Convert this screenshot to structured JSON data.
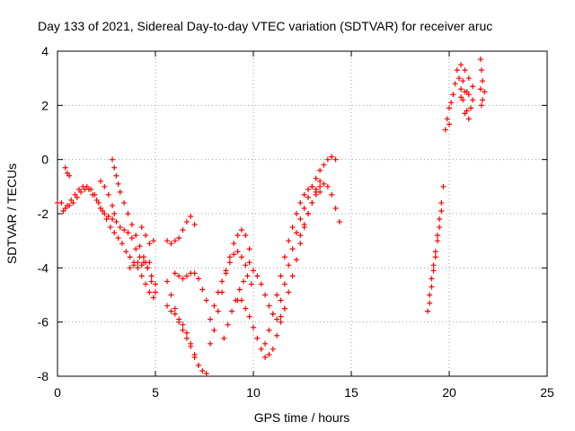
{
  "chart_data": {
    "type": "scatter",
    "title": "Day 133 of 2021, Sidereal Day-to-day VTEC variation (SDTVAR) for receiver aruc",
    "xlabel": "GPS time / hours",
    "ylabel": "SDTVAR / TECUs",
    "xlim": [
      0,
      25
    ],
    "ylim": [
      -8,
      4
    ],
    "xticks": [
      "0",
      "5",
      "10",
      "15",
      "20",
      "25"
    ],
    "yticks": [
      "-8",
      "-6",
      "-4",
      "-2",
      "0",
      "2",
      "4"
    ],
    "grid": true,
    "marker": "plus",
    "color": "#ff0000",
    "series": [
      {
        "name": "s1",
        "points": [
          [
            0.0,
            -1.6
          ],
          [
            0.2,
            -1.6
          ],
          [
            0.4,
            -1.8
          ],
          [
            0.6,
            -1.7
          ],
          [
            0.8,
            -1.6
          ],
          [
            1.0,
            -1.4
          ],
          [
            1.2,
            -1.2
          ],
          [
            1.4,
            -1.1
          ],
          [
            1.6,
            -1.1
          ],
          [
            1.8,
            -1.3
          ],
          [
            2.0,
            -1.5
          ],
          [
            2.2,
            -1.8
          ],
          [
            2.4,
            -2.0
          ],
          [
            2.6,
            -2.1
          ],
          [
            2.8,
            -2.2
          ]
        ]
      },
      {
        "name": "s2",
        "points": [
          [
            0.3,
            -1.9
          ],
          [
            0.5,
            -1.7
          ],
          [
            0.7,
            -1.5
          ],
          [
            0.9,
            -1.3
          ],
          [
            1.1,
            -1.1
          ],
          [
            1.3,
            -1.0
          ],
          [
            1.5,
            -1.0
          ],
          [
            1.7,
            -1.1
          ],
          [
            1.9,
            -1.3
          ],
          [
            2.1,
            -1.6
          ],
          [
            2.3,
            -1.9
          ],
          [
            2.5,
            -2.2
          ],
          [
            2.7,
            -2.5
          ],
          [
            2.9,
            -2.7
          ],
          [
            3.1,
            -2.9
          ],
          [
            3.3,
            -3.1
          ],
          [
            3.5,
            -3.4
          ],
          [
            3.7,
            -3.6
          ],
          [
            3.9,
            -3.8
          ],
          [
            4.1,
            -4.0
          ],
          [
            4.3,
            -4.3
          ],
          [
            4.5,
            -4.6
          ],
          [
            4.7,
            -4.9
          ],
          [
            4.9,
            -5.1
          ]
        ]
      },
      {
        "name": "s3",
        "points": [
          [
            0.4,
            -0.3
          ],
          [
            0.5,
            -0.5
          ],
          [
            0.6,
            -0.6
          ]
        ]
      },
      {
        "name": "s4",
        "points": [
          [
            2.2,
            -0.8
          ],
          [
            2.4,
            -1.0
          ],
          [
            2.6,
            -1.3
          ],
          [
            2.8,
            -1.7
          ],
          [
            2.9,
            -2.0
          ],
          [
            3.0,
            -2.3
          ],
          [
            3.2,
            -2.5
          ],
          [
            3.4,
            -2.6
          ],
          [
            3.6,
            -2.7
          ],
          [
            3.8,
            -2.9
          ],
          [
            4.0,
            -3.3
          ],
          [
            4.2,
            -3.6
          ],
          [
            4.4,
            -3.8
          ],
          [
            4.6,
            -4.0
          ],
          [
            4.8,
            -4.3
          ],
          [
            5.0,
            -4.6
          ]
        ]
      },
      {
        "name": "s5",
        "points": [
          [
            2.8,
            0.0
          ],
          [
            2.9,
            -0.3
          ],
          [
            3.0,
            -0.6
          ],
          [
            3.1,
            -0.9
          ],
          [
            3.2,
            -1.2
          ],
          [
            3.4,
            -1.6
          ],
          [
            3.6,
            -2.0
          ],
          [
            3.8,
            -2.4
          ],
          [
            4.0,
            -2.8
          ],
          [
            4.2,
            -3.2
          ],
          [
            4.4,
            -3.6
          ],
          [
            4.6,
            -4.0
          ],
          [
            4.8,
            -4.5
          ],
          [
            5.0,
            -4.9
          ]
        ]
      },
      {
        "name": "s6",
        "points": [
          [
            3.7,
            -4.0
          ],
          [
            3.9,
            -3.9
          ],
          [
            4.1,
            -3.8
          ],
          [
            4.3,
            -3.9
          ],
          [
            4.5,
            -3.8
          ],
          [
            4.7,
            -3.8
          ]
        ]
      },
      {
        "name": "s7",
        "points": [
          [
            4.3,
            -2.5
          ],
          [
            4.5,
            -2.8
          ],
          [
            4.7,
            -3.1
          ],
          [
            4.9,
            -3.0
          ]
        ]
      },
      {
        "name": "s8",
        "points": [
          [
            5.6,
            -3.0
          ],
          [
            5.8,
            -3.1
          ],
          [
            6.0,
            -3.0
          ],
          [
            6.2,
            -2.9
          ],
          [
            6.4,
            -2.6
          ],
          [
            6.6,
            -2.3
          ],
          [
            6.8,
            -2.1
          ],
          [
            7.0,
            -2.4
          ]
        ]
      },
      {
        "name": "s9",
        "points": [
          [
            5.6,
            -5.4
          ],
          [
            5.8,
            -5.6
          ],
          [
            6.0,
            -5.7
          ],
          [
            6.2,
            -5.9
          ],
          [
            6.4,
            -6.1
          ],
          [
            6.6,
            -6.4
          ],
          [
            6.8,
            -6.8
          ],
          [
            7.0,
            -7.2
          ],
          [
            7.2,
            -7.6
          ],
          [
            7.4,
            -7.8
          ],
          [
            7.6,
            -7.9
          ]
        ]
      },
      {
        "name": "s10",
        "points": [
          [
            5.6,
            -4.5
          ],
          [
            5.8,
            -5.0
          ],
          [
            6.0,
            -5.5
          ],
          [
            6.2,
            -6.0
          ],
          [
            6.4,
            -6.3
          ],
          [
            6.6,
            -6.6
          ],
          [
            6.8,
            -6.9
          ],
          [
            7.0,
            -7.3
          ],
          [
            7.2,
            -7.6
          ]
        ]
      },
      {
        "name": "s11",
        "points": [
          [
            6.0,
            -4.2
          ],
          [
            6.2,
            -4.3
          ],
          [
            6.4,
            -4.4
          ],
          [
            6.6,
            -4.3
          ],
          [
            6.8,
            -4.2
          ],
          [
            7.0,
            -4.2
          ],
          [
            7.2,
            -4.4
          ],
          [
            7.4,
            -4.8
          ],
          [
            7.6,
            -5.2
          ]
        ]
      },
      {
        "name": "s12",
        "points": [
          [
            7.8,
            -6.8
          ],
          [
            8.0,
            -6.3
          ],
          [
            8.2,
            -5.6
          ],
          [
            8.4,
            -4.9
          ],
          [
            8.6,
            -4.2
          ],
          [
            8.8,
            -3.6
          ],
          [
            9.0,
            -3.1
          ],
          [
            9.2,
            -2.8
          ],
          [
            9.4,
            -2.6
          ],
          [
            9.6,
            -2.8
          ],
          [
            9.8,
            -3.3
          ]
        ]
      },
      {
        "name": "s13",
        "points": [
          [
            7.8,
            -5.9
          ],
          [
            8.0,
            -5.4
          ],
          [
            8.2,
            -4.9
          ],
          [
            8.4,
            -4.5
          ],
          [
            8.6,
            -4.1
          ],
          [
            8.8,
            -3.8
          ],
          [
            9.0,
            -3.5
          ],
          [
            9.2,
            -3.4
          ],
          [
            9.4,
            -3.6
          ],
          [
            9.6,
            -3.9
          ]
        ]
      },
      {
        "name": "s14",
        "points": [
          [
            8.5,
            -6.6
          ],
          [
            8.7,
            -6.1
          ],
          [
            8.9,
            -5.6
          ],
          [
            9.1,
            -5.2
          ],
          [
            9.3,
            -4.8
          ],
          [
            9.5,
            -4.5
          ],
          [
            9.7,
            -4.3
          ],
          [
            9.9,
            -4.6
          ]
        ]
      },
      {
        "name": "s15",
        "points": [
          [
            9.8,
            -3.8
          ],
          [
            10.0,
            -4.1
          ],
          [
            10.2,
            -4.3
          ],
          [
            10.4,
            -4.6
          ],
          [
            10.6,
            -5.0
          ],
          [
            10.8,
            -5.4
          ],
          [
            11.0,
            -5.7
          ],
          [
            11.2,
            -5.9
          ],
          [
            11.4,
            -5.8
          ],
          [
            11.6,
            -5.5
          ]
        ]
      },
      {
        "name": "s16",
        "points": [
          [
            9.2,
            -5.2
          ],
          [
            9.4,
            -5.2
          ],
          [
            9.6,
            -5.5
          ],
          [
            9.8,
            -5.8
          ],
          [
            10.0,
            -6.2
          ],
          [
            10.2,
            -6.6
          ],
          [
            10.4,
            -7.0
          ],
          [
            10.6,
            -7.3
          ],
          [
            10.8,
            -7.2
          ],
          [
            11.0,
            -7.0
          ],
          [
            11.2,
            -6.5
          ],
          [
            11.4,
            -6.0
          ],
          [
            11.6,
            -5.5
          ],
          [
            11.8,
            -4.9
          ],
          [
            12.0,
            -4.3
          ],
          [
            12.2,
            -3.7
          ],
          [
            12.4,
            -3.1
          ],
          [
            12.6,
            -2.5
          ],
          [
            12.8,
            -2.0
          ],
          [
            13.0,
            -1.6
          ],
          [
            13.2,
            -1.2
          ],
          [
            13.4,
            -0.8
          ]
        ]
      },
      {
        "name": "s17",
        "points": [
          [
            10.6,
            -6.8
          ],
          [
            10.8,
            -6.3
          ],
          [
            11.0,
            -5.7
          ],
          [
            11.2,
            -5.0
          ],
          [
            11.4,
            -4.3
          ],
          [
            11.6,
            -3.6
          ],
          [
            11.8,
            -3.0
          ],
          [
            12.0,
            -2.5
          ],
          [
            12.2,
            -2.0
          ],
          [
            12.4,
            -1.6
          ],
          [
            12.6,
            -1.3
          ],
          [
            12.8,
            -1.1
          ],
          [
            13.0,
            -1.0
          ],
          [
            13.2,
            -1.1
          ],
          [
            13.4,
            -1.2
          ]
        ]
      },
      {
        "name": "s18",
        "points": [
          [
            11.4,
            -5.2
          ],
          [
            11.6,
            -4.6
          ],
          [
            11.8,
            -3.9
          ],
          [
            12.0,
            -3.3
          ],
          [
            12.2,
            -2.7
          ],
          [
            12.4,
            -2.2
          ],
          [
            12.6,
            -1.8
          ],
          [
            12.8,
            -1.4
          ],
          [
            13.0,
            -1.0
          ],
          [
            13.2,
            -0.7
          ],
          [
            13.4,
            -0.4
          ],
          [
            13.6,
            -0.2
          ],
          [
            13.8,
            0.0
          ],
          [
            14.0,
            0.1
          ],
          [
            14.2,
            0.0
          ]
        ]
      },
      {
        "name": "s19",
        "points": [
          [
            12.4,
            -2.8
          ],
          [
            12.6,
            -2.4
          ],
          [
            12.8,
            -2.0
          ],
          [
            13.0,
            -1.6
          ],
          [
            13.2,
            -1.3
          ],
          [
            13.4,
            -1.0
          ],
          [
            13.6,
            -0.9
          ],
          [
            13.8,
            -1.0
          ],
          [
            14.0,
            -1.3
          ],
          [
            14.2,
            -1.8
          ],
          [
            14.4,
            -2.3
          ]
        ]
      },
      {
        "name": "s20",
        "points": [
          [
            18.9,
            -5.6
          ],
          [
            19.0,
            -5.0
          ],
          [
            19.1,
            -4.4
          ],
          [
            19.2,
            -3.9
          ],
          [
            19.3,
            -3.4
          ],
          [
            19.4,
            -2.8
          ],
          [
            19.5,
            -2.2
          ],
          [
            19.6,
            -1.6
          ],
          [
            19.7,
            -1.0
          ]
        ]
      },
      {
        "name": "s21",
        "points": [
          [
            19.0,
            -5.3
          ],
          [
            19.1,
            -4.7
          ],
          [
            19.2,
            -4.1
          ],
          [
            19.3,
            -3.6
          ],
          [
            19.4,
            -3.0
          ],
          [
            19.5,
            -2.5
          ],
          [
            19.6,
            -1.9
          ]
        ]
      },
      {
        "name": "s22",
        "points": [
          [
            19.8,
            1.1
          ],
          [
            19.9,
            1.5
          ],
          [
            20.0,
            1.9
          ],
          [
            20.1,
            2.1
          ],
          [
            20.0,
            1.3
          ]
        ]
      },
      {
        "name": "s23",
        "points": [
          [
            20.2,
            2.4
          ],
          [
            20.3,
            2.8
          ],
          [
            20.4,
            3.3
          ],
          [
            20.5,
            3.0
          ],
          [
            20.6,
            2.6
          ],
          [
            20.7,
            2.2
          ],
          [
            20.9,
            1.8
          ],
          [
            21.1,
            1.9
          ]
        ]
      },
      {
        "name": "s24",
        "points": [
          [
            20.6,
            3.5
          ],
          [
            20.8,
            3.3
          ],
          [
            21.0,
            3.0
          ],
          [
            21.2,
            2.7
          ],
          [
            20.7,
            2.9
          ],
          [
            20.9,
            2.5
          ]
        ]
      },
      {
        "name": "s25",
        "points": [
          [
            20.6,
            2.3
          ],
          [
            20.8,
            2.5
          ],
          [
            21.0,
            2.4
          ],
          [
            21.2,
            2.2
          ],
          [
            20.8,
            1.7
          ],
          [
            21.0,
            1.5
          ]
        ]
      },
      {
        "name": "s26",
        "points": [
          [
            21.6,
            3.7
          ],
          [
            21.65,
            3.3
          ],
          [
            21.7,
            2.9
          ],
          [
            21.6,
            2.6
          ],
          [
            21.7,
            2.2
          ],
          [
            21.65,
            2.0
          ],
          [
            21.8,
            2.5
          ]
        ]
      }
    ]
  }
}
